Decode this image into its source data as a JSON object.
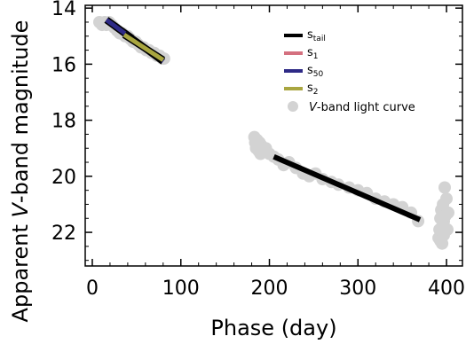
{
  "chart_data": {
    "type": "scatter",
    "xlabel": "Phase (day)",
    "ylabel_parts": [
      "Apparent ",
      "V",
      "-band magnitude"
    ],
    "xlim": [
      -8,
      418
    ],
    "ylim": [
      23.2,
      13.9
    ],
    "y_inverted": true,
    "xticks": [
      0,
      100,
      200,
      300,
      400
    ],
    "yticks": [
      14,
      16,
      18,
      20,
      22
    ],
    "grid": false,
    "legend_position": "top-right",
    "colors": {
      "points": "#d3d3d3",
      "s_tail": "#000000",
      "s1": "#d4707f",
      "s50": "#2e2a86",
      "s2": "#a9a640"
    },
    "light_curve": {
      "x": [
        8,
        11,
        14,
        16,
        19,
        22,
        25,
        28,
        31,
        34,
        37,
        40,
        43,
        46,
        49,
        52,
        55,
        58,
        61,
        64,
        67,
        70,
        73,
        76,
        79,
        81,
        183,
        184,
        185,
        186,
        187,
        188,
        189,
        190,
        191,
        192,
        194,
        196,
        200,
        205,
        210,
        216,
        222,
        230,
        238,
        245,
        252,
        260,
        270,
        278,
        290,
        300,
        310,
        320,
        330,
        340,
        350,
        360,
        368,
        391,
        392,
        393,
        393,
        394,
        395,
        395,
        396,
        397,
        397,
        398,
        399,
        400,
        401,
        402
      ],
      "y": [
        14.5,
        14.6,
        14.5,
        14.6,
        14.5,
        14.6,
        14.7,
        14.8,
        14.9,
        14.9,
        15.0,
        15.0,
        15.1,
        15.2,
        15.2,
        15.3,
        15.4,
        15.4,
        15.5,
        15.5,
        15.6,
        15.6,
        15.7,
        15.7,
        15.8,
        15.8,
        18.6,
        18.8,
        19.0,
        18.7,
        18.9,
        19.1,
        18.8,
        19.2,
        18.9,
        19.0,
        19.1,
        19.0,
        19.2,
        19.3,
        19.4,
        19.6,
        19.5,
        19.7,
        19.9,
        20.0,
        19.9,
        20.1,
        20.2,
        20.3,
        20.4,
        20.5,
        20.6,
        20.8,
        20.9,
        21.0,
        21.1,
        21.3,
        21.6,
        22.2,
        21.9,
        21.5,
        22.3,
        21.2,
        21.8,
        22.4,
        21.0,
        21.6,
        22.1,
        20.4,
        21.4,
        20.8,
        21.9,
        21.3
      ]
    },
    "fits": [
      {
        "key": "s_tail",
        "x": [
          205,
          370
        ],
        "y": [
          19.3,
          21.55
        ]
      },
      {
        "key": "s1",
        "x": [
          16,
          45
        ],
        "y": [
          14.42,
          15.08
        ]
      },
      {
        "key": "s50",
        "x": [
          16,
          80
        ],
        "y": [
          14.42,
          15.9
        ]
      },
      {
        "key": "s2",
        "x": [
          36,
          80
        ],
        "y": [
          14.95,
          15.85
        ]
      }
    ],
    "legend": [
      {
        "key": "s_tail",
        "main": "s",
        "sub": "tail"
      },
      {
        "key": "s1",
        "main": "s",
        "sub": "1"
      },
      {
        "key": "s50",
        "main": "s",
        "sub": "50"
      },
      {
        "key": "s2",
        "main": "s",
        "sub": "2"
      },
      {
        "key": "points",
        "main_parts": [
          "V",
          "-band light curve"
        ]
      }
    ]
  }
}
